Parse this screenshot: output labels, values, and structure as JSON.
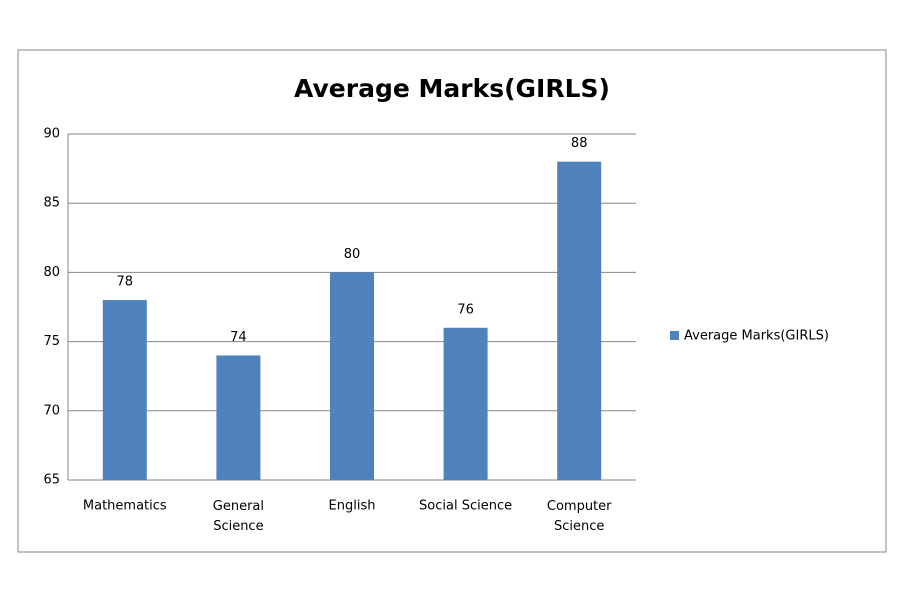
{
  "chart_data": {
    "type": "bar",
    "title": "Average Marks(GIRLS)",
    "categories": [
      "Mathematics",
      "General Science",
      "English",
      "Social Science",
      "Computer Science"
    ],
    "series": [
      {
        "name": "Average Marks(GIRLS)",
        "color": "#4f81bd",
        "values": [
          78,
          74,
          80,
          76,
          88
        ]
      }
    ],
    "ylim": [
      65,
      90
    ],
    "yticks": [
      65,
      70,
      75,
      80,
      85,
      90
    ],
    "grid": true,
    "legend": "right"
  }
}
